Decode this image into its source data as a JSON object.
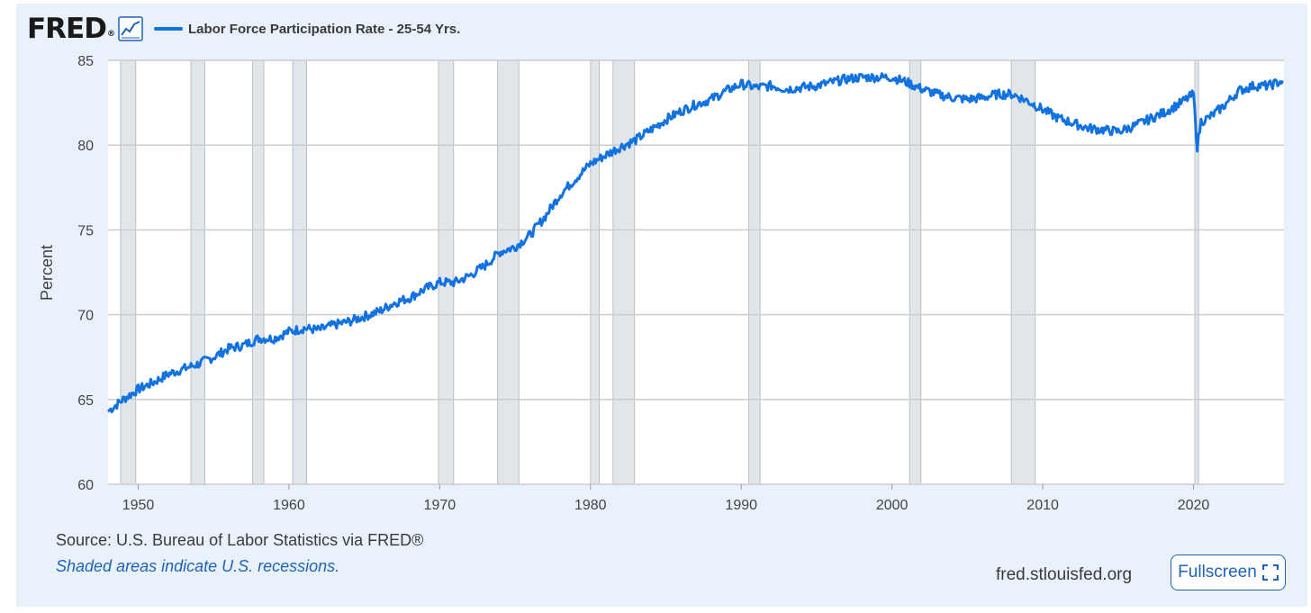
{
  "header": {
    "logo_text": "FRED",
    "logo_reg": "®",
    "logo_icon": "line-chart-icon"
  },
  "footer": {
    "source": "Source: U.S. Bureau of Labor Statistics via FRED®",
    "recession_note": "Shaded areas indicate U.S. recessions.",
    "site": "fred.stlouisfed.org",
    "fullscreen_label": "Fullscreen",
    "fullscreen_icon": "expand-corners-icon"
  },
  "colors": {
    "series": "#1172e0",
    "recession_shade": "#e1e6ea",
    "grid": "#cccccc",
    "panel_background": "#e9f1fa",
    "link": "#1f63b5"
  },
  "chart_data": {
    "type": "line",
    "title": "",
    "xlabel": "",
    "ylabel": "Percent",
    "xlim": [
      "1948-01",
      "2025-12"
    ],
    "ylim": [
      60,
      85
    ],
    "yticks": [
      "60",
      "65",
      "70",
      "75",
      "80",
      "85"
    ],
    "xticks": [
      "1950",
      "1960",
      "1970",
      "1980",
      "1990",
      "2000",
      "2010",
      "2020"
    ],
    "grid": true,
    "legend": "top-left",
    "recessions": [
      [
        "1948-11",
        "1949-10"
      ],
      [
        "1953-07",
        "1954-05"
      ],
      [
        "1957-08",
        "1958-04"
      ],
      [
        "1960-04",
        "1961-02"
      ],
      [
        "1969-12",
        "1970-11"
      ],
      [
        "1973-11",
        "1975-03"
      ],
      [
        "1980-01",
        "1980-07"
      ],
      [
        "1981-07",
        "1982-11"
      ],
      [
        "1990-07",
        "1991-03"
      ],
      [
        "2001-03",
        "2001-11"
      ],
      [
        "2007-12",
        "2009-06"
      ],
      [
        "2020-02",
        "2020-04"
      ]
    ],
    "series": [
      {
        "name": "Labor Force Participation Rate - 25-54 Yrs.",
        "x": [
          "1948-01",
          "1949-01",
          "1950-01",
          "1951-01",
          "1952-01",
          "1953-01",
          "1954-01",
          "1955-01",
          "1956-01",
          "1957-01",
          "1958-01",
          "1959-01",
          "1960-01",
          "1961-01",
          "1962-01",
          "1963-01",
          "1964-01",
          "1965-01",
          "1966-01",
          "1967-01",
          "1968-01",
          "1969-01",
          "1970-01",
          "1971-01",
          "1972-01",
          "1973-01",
          "1974-01",
          "1975-01",
          "1976-01",
          "1977-01",
          "1978-01",
          "1979-01",
          "1980-01",
          "1981-01",
          "1982-01",
          "1983-01",
          "1984-01",
          "1985-01",
          "1986-01",
          "1987-01",
          "1988-01",
          "1989-01",
          "1990-01",
          "1991-01",
          "1992-01",
          "1993-01",
          "1994-01",
          "1995-01",
          "1996-01",
          "1997-01",
          "1998-01",
          "1999-01",
          "2000-01",
          "2001-01",
          "2002-01",
          "2003-01",
          "2004-01",
          "2005-01",
          "2006-01",
          "2007-01",
          "2008-01",
          "2009-01",
          "2010-01",
          "2011-01",
          "2012-01",
          "2013-01",
          "2014-01",
          "2015-01",
          "2016-01",
          "2017-01",
          "2018-01",
          "2019-01",
          "2020-01",
          "2020-04",
          "2020-07",
          "2021-01",
          "2022-01",
          "2023-01",
          "2024-01",
          "2025-01",
          "2025-12"
        ],
        "values": [
          64.3,
          65.0,
          65.6,
          66.0,
          66.5,
          66.8,
          67.1,
          67.5,
          68.0,
          68.2,
          68.6,
          68.6,
          69.0,
          69.2,
          69.1,
          69.4,
          69.6,
          69.9,
          70.2,
          70.7,
          71.0,
          71.5,
          71.9,
          71.9,
          72.3,
          72.9,
          73.7,
          74.0,
          74.7,
          75.8,
          77.1,
          78.0,
          78.9,
          79.4,
          79.9,
          80.3,
          80.9,
          81.5,
          82.0,
          82.4,
          82.7,
          83.2,
          83.6,
          83.4,
          83.5,
          83.3,
          83.4,
          83.5,
          83.7,
          83.9,
          84.0,
          84.0,
          84.0,
          83.7,
          83.3,
          83.0,
          82.8,
          82.7,
          82.8,
          83.0,
          83.0,
          82.6,
          82.1,
          81.6,
          81.3,
          81.0,
          80.9,
          80.8,
          81.1,
          81.5,
          81.9,
          82.4,
          83.0,
          79.9,
          81.4,
          81.6,
          82.3,
          83.2,
          83.5,
          83.5,
          83.8
        ]
      }
    ]
  }
}
